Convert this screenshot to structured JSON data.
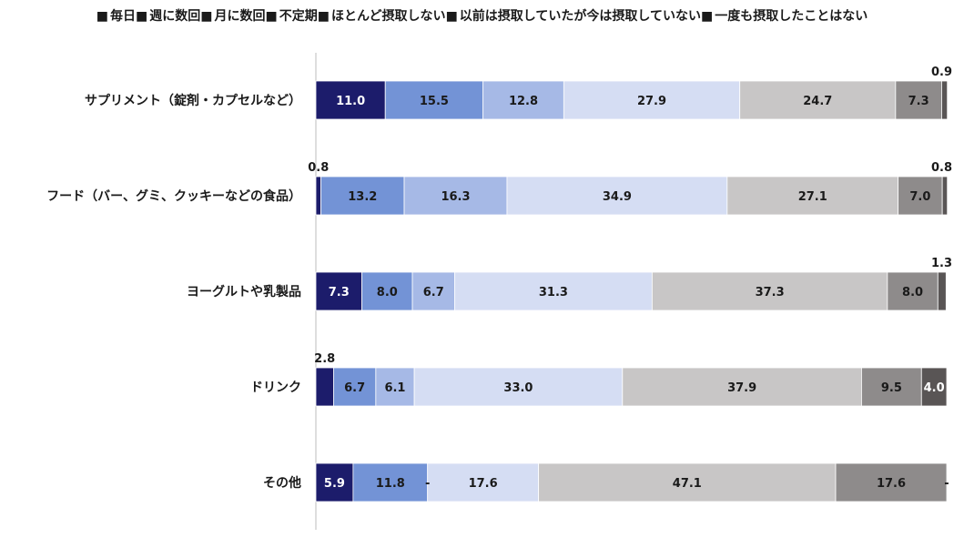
{
  "chart_data": {
    "type": "bar",
    "orientation": "horizontal",
    "stacked": true,
    "xlim": [
      0,
      100
    ],
    "legend_position": "top",
    "grid": false,
    "categories": [
      "サプリメント（錠剤・カプセルなど）",
      "フード（バー、グミ、クッキーなどの食品）",
      "ヨーグルトや乳製品",
      "ドリンク",
      "その他"
    ],
    "series": [
      {
        "name": "毎日",
        "color": "#1c1c6b",
        "label_color": "#ffffff",
        "values": [
          11.0,
          0.8,
          7.3,
          2.8,
          5.9
        ]
      },
      {
        "name": "週に数回",
        "color": "#7393d6",
        "label_color": "#1a1a1a",
        "values": [
          15.5,
          13.2,
          8.0,
          6.7,
          11.8
        ]
      },
      {
        "name": "月に数回",
        "color": "#a6b9e6",
        "label_color": "#1a1a1a",
        "values": [
          12.8,
          16.3,
          6.7,
          6.1,
          null
        ]
      },
      {
        "name": "不定期",
        "color": "#d5ddf3",
        "label_color": "#1a1a1a",
        "values": [
          27.9,
          34.9,
          31.3,
          33.0,
          17.6
        ]
      },
      {
        "name": "ほとんど摂取しない",
        "color": "#c8c6c6",
        "label_color": "#1a1a1a",
        "values": [
          24.7,
          27.1,
          37.3,
          37.9,
          47.1
        ]
      },
      {
        "name": "以前は摂取していたが今は摂取していない",
        "color": "#8e8b8b",
        "label_color": "#1a1a1a",
        "values": [
          7.3,
          7.0,
          8.0,
          9.5,
          17.6
        ]
      },
      {
        "name": "一度も摂取したことはない",
        "color": "#595555",
        "label_color": "#ffffff",
        "values": [
          0.9,
          0.8,
          1.3,
          4.0,
          null
        ]
      }
    ],
    "value_labels": [
      [
        "11.0",
        "15.5",
        "12.8",
        "27.9",
        "24.7",
        "7.3",
        "0.9"
      ],
      [
        "0.8",
        "13.2",
        "16.3",
        "34.9",
        "27.1",
        "7.0",
        "0.8"
      ],
      [
        "7.3",
        "8.0",
        "6.7",
        "31.3",
        "37.3",
        "8.0",
        "1.3"
      ],
      [
        "2.8",
        "6.7",
        "6.1",
        "33.0",
        "37.9",
        "9.5",
        "4.0"
      ],
      [
        "5.9",
        "11.8",
        "-",
        "17.6",
        "47.1",
        "17.6",
        "-"
      ]
    ],
    "legend_marker": "■"
  }
}
